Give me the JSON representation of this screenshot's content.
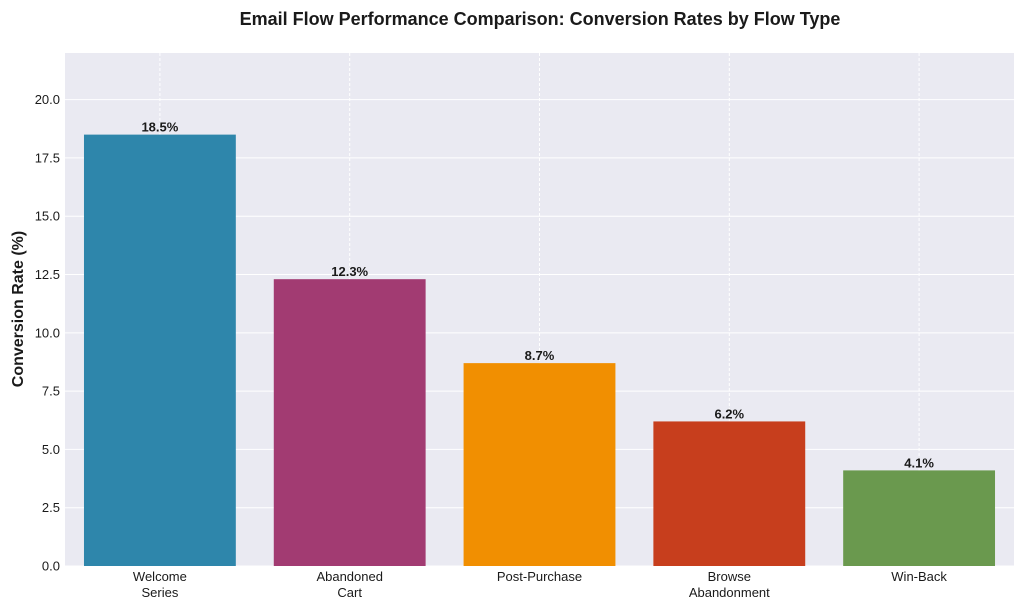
{
  "chart_data": {
    "type": "bar",
    "title": "Email Flow Performance Comparison: Conversion Rates by Flow Type",
    "xlabel": "",
    "ylabel": "Conversion Rate (%)",
    "ylim": [
      0,
      22
    ],
    "yticks": [
      0.0,
      2.5,
      5.0,
      7.5,
      10.0,
      12.5,
      15.0,
      17.5,
      20.0
    ],
    "ytick_labels": [
      "0.0",
      "2.5",
      "5.0",
      "7.5",
      "10.0",
      "12.5",
      "15.0",
      "17.5",
      "20.0"
    ],
    "grid": true,
    "categories": [
      [
        "Welcome",
        "Series"
      ],
      [
        "Abandoned",
        "Cart"
      ],
      [
        "Post-Purchase"
      ],
      [
        "Browse",
        "Abandonment"
      ],
      [
        "Win-Back"
      ]
    ],
    "values": [
      18.5,
      12.3,
      8.7,
      6.2,
      4.1
    ],
    "value_labels": [
      "18.5%",
      "12.3%",
      "8.7%",
      "6.2%",
      "4.1%"
    ],
    "colors": [
      "#2E86AB",
      "#A23B72",
      "#F18F01",
      "#C73E1D",
      "#6A994E"
    ],
    "background": "#EAEAF2"
  }
}
